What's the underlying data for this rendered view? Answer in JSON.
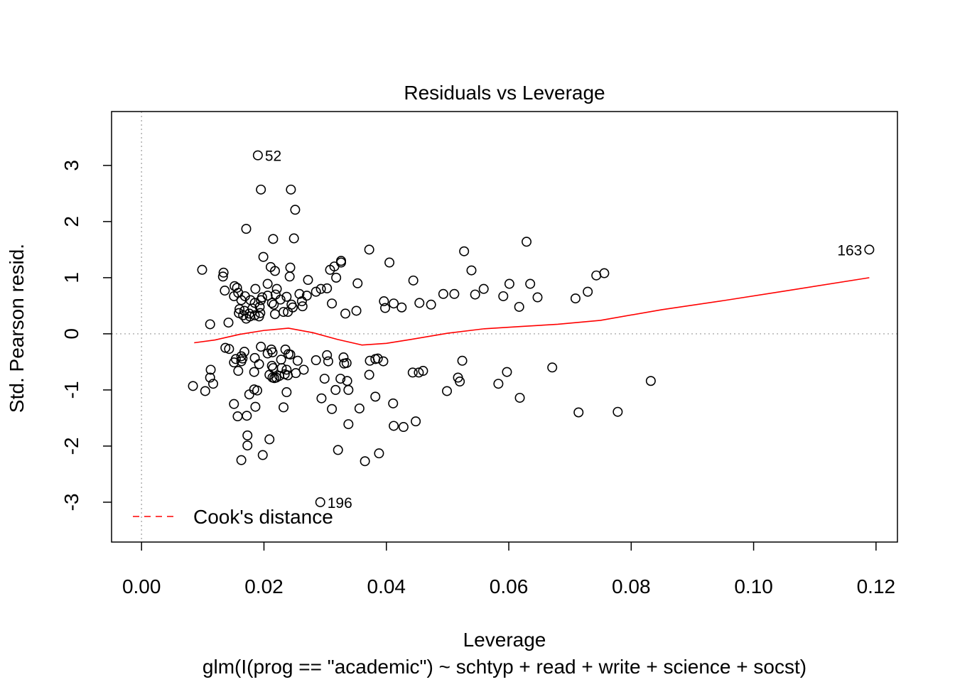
{
  "chart_data": {
    "type": "scatter",
    "title": "Residuals vs Leverage",
    "xlabel": "Leverage",
    "ylabel": "Std. Pearson resid.",
    "subtitle": "glm(I(prog == \"academic\") ~ schtyp + read + write + science + socst)",
    "xlim": [
      -0.0049,
      0.1235
    ],
    "ylim": [
      -3.71,
      3.96
    ],
    "xticks": [
      "0.00",
      "0.02",
      "0.04",
      "0.06",
      "0.08",
      "0.10",
      "0.12"
    ],
    "yticks": [
      "-3",
      "-2",
      "-1",
      "0",
      "1",
      "2",
      "3"
    ],
    "grid": false,
    "reference_lines": {
      "x": 0,
      "y": 0,
      "color": "#b4b4b4",
      "style": "dotted"
    },
    "point_labels": [
      {
        "text": "52",
        "x": 0.019,
        "y": 3.18,
        "side": "right"
      },
      {
        "text": "163",
        "x": 0.1189,
        "y": 1.5,
        "side": "left"
      },
      {
        "text": "196",
        "x": 0.0292,
        "y": -3.0,
        "side": "right"
      }
    ],
    "smooth_line": {
      "color": "#ff0000",
      "x": [
        0.0086,
        0.012,
        0.016,
        0.02,
        0.024,
        0.028,
        0.032,
        0.036,
        0.04,
        0.044,
        0.05,
        0.056,
        0.062,
        0.068,
        0.075,
        0.085,
        0.095,
        0.105,
        0.1189
      ],
      "y": [
        -0.16,
        -0.11,
        -0.01,
        0.06,
        0.1,
        0.02,
        -0.1,
        -0.2,
        -0.17,
        -0.1,
        0.01,
        0.09,
        0.13,
        0.17,
        0.24,
        0.43,
        0.59,
        0.76,
        1.0
      ]
    },
    "legend": {
      "position": "bottom-left",
      "label": "Cook's distance",
      "color": "#ff0000",
      "style": "dashed"
    },
    "points": [
      [
        0.019,
        3.18
      ],
      [
        0.0195,
        2.57
      ],
      [
        0.0244,
        2.57
      ],
      [
        0.0251,
        2.21
      ],
      [
        0.0171,
        1.87
      ],
      [
        0.0215,
        1.69
      ],
      [
        0.0249,
        1.7
      ],
      [
        0.0629,
        1.64
      ],
      [
        0.0372,
        1.5
      ],
      [
        0.0527,
        1.47
      ],
      [
        0.0326,
        1.3
      ],
      [
        0.0326,
        1.27
      ],
      [
        0.0199,
        1.37
      ],
      [
        0.0405,
        1.27
      ],
      [
        0.1189,
        1.5
      ],
      [
        0.0099,
        1.14
      ],
      [
        0.0211,
        1.19
      ],
      [
        0.0243,
        1.18
      ],
      [
        0.0308,
        1.14
      ],
      [
        0.0315,
        1.2
      ],
      [
        0.0539,
        1.13
      ],
      [
        0.0218,
        1.12
      ],
      [
        0.0134,
        1.09
      ],
      [
        0.0133,
        1.02
      ],
      [
        0.0242,
        1.02
      ],
      [
        0.0318,
        1.0
      ],
      [
        0.0444,
        0.95
      ],
      [
        0.0272,
        0.96
      ],
      [
        0.0756,
        1.08
      ],
      [
        0.0743,
        1.04
      ],
      [
        0.0206,
        0.89
      ],
      [
        0.0353,
        0.9
      ],
      [
        0.0601,
        0.89
      ],
      [
        0.0635,
        0.89
      ],
      [
        0.0152,
        0.85
      ],
      [
        0.0156,
        0.82
      ],
      [
        0.0136,
        0.77
      ],
      [
        0.0186,
        0.8
      ],
      [
        0.0221,
        0.8
      ],
      [
        0.0293,
        0.8
      ],
      [
        0.0303,
        0.81
      ],
      [
        0.0559,
        0.8
      ],
      [
        0.0158,
        0.73
      ],
      [
        0.0169,
        0.67
      ],
      [
        0.0178,
        0.6
      ],
      [
        0.0197,
        0.65
      ],
      [
        0.0206,
        0.68
      ],
      [
        0.0219,
        0.7
      ],
      [
        0.0237,
        0.66
      ],
      [
        0.0258,
        0.71
      ],
      [
        0.027,
        0.68
      ],
      [
        0.0285,
        0.75
      ],
      [
        0.0493,
        0.71
      ],
      [
        0.0511,
        0.71
      ],
      [
        0.0545,
        0.7
      ],
      [
        0.0591,
        0.67
      ],
      [
        0.0647,
        0.65
      ],
      [
        0.0729,
        0.75
      ],
      [
        0.0709,
        0.63
      ],
      [
        0.0151,
        0.67
      ],
      [
        0.0163,
        0.6
      ],
      [
        0.0185,
        0.55
      ],
      [
        0.0195,
        0.6
      ],
      [
        0.0213,
        0.55
      ],
      [
        0.0227,
        0.61
      ],
      [
        0.0245,
        0.52
      ],
      [
        0.0262,
        0.58
      ],
      [
        0.0311,
        0.54
      ],
      [
        0.0396,
        0.58
      ],
      [
        0.0412,
        0.54
      ],
      [
        0.0454,
        0.55
      ],
      [
        0.0425,
        0.47
      ],
      [
        0.0473,
        0.52
      ],
      [
        0.0617,
        0.48
      ],
      [
        0.016,
        0.44
      ],
      [
        0.0168,
        0.41
      ],
      [
        0.0181,
        0.45
      ],
      [
        0.0193,
        0.48
      ],
      [
        0.0216,
        0.52
      ],
      [
        0.0247,
        0.47
      ],
      [
        0.0263,
        0.49
      ],
      [
        0.0398,
        0.46
      ],
      [
        0.0159,
        0.37
      ],
      [
        0.0166,
        0.33
      ],
      [
        0.0176,
        0.36
      ],
      [
        0.0185,
        0.33
      ],
      [
        0.0194,
        0.37
      ],
      [
        0.0218,
        0.35
      ],
      [
        0.0232,
        0.39
      ],
      [
        0.0239,
        0.39
      ],
      [
        0.0333,
        0.36
      ],
      [
        0.0351,
        0.41
      ],
      [
        0.0171,
        0.27
      ],
      [
        0.0177,
        0.31
      ],
      [
        0.0192,
        0.31
      ],
      [
        0.0142,
        0.2
      ],
      [
        0.0112,
        0.17
      ],
      [
        0.0137,
        -0.25
      ],
      [
        0.0143,
        -0.27
      ],
      [
        0.0163,
        -0.4
      ],
      [
        0.0165,
        -0.44
      ],
      [
        0.0168,
        -0.32
      ],
      [
        0.0195,
        -0.23
      ],
      [
        0.0206,
        -0.35
      ],
      [
        0.0212,
        -0.28
      ],
      [
        0.0214,
        -0.33
      ],
      [
        0.0228,
        -0.46
      ],
      [
        0.0235,
        -0.28
      ],
      [
        0.024,
        -0.36
      ],
      [
        0.0243,
        -0.37
      ],
      [
        0.0255,
        -0.48
      ],
      [
        0.0285,
        -0.47
      ],
      [
        0.0303,
        -0.38
      ],
      [
        0.0305,
        -0.49
      ],
      [
        0.033,
        -0.42
      ],
      [
        0.0331,
        -0.53
      ],
      [
        0.0335,
        -0.52
      ],
      [
        0.0373,
        -0.48
      ],
      [
        0.0382,
        -0.45
      ],
      [
        0.0386,
        -0.44
      ],
      [
        0.0395,
        -0.49
      ],
      [
        0.0524,
        -0.48
      ],
      [
        0.0151,
        -0.51
      ],
      [
        0.0154,
        -0.45
      ],
      [
        0.0163,
        -0.49
      ],
      [
        0.0185,
        -0.43
      ],
      [
        0.0192,
        -0.54
      ],
      [
        0.0213,
        -0.57
      ],
      [
        0.0215,
        -0.61
      ],
      [
        0.0229,
        -0.61
      ],
      [
        0.0237,
        -0.64
      ],
      [
        0.0252,
        -0.7
      ],
      [
        0.0265,
        -0.64
      ],
      [
        0.0113,
        -0.64
      ],
      [
        0.0158,
        -0.66
      ],
      [
        0.0184,
        -0.68
      ],
      [
        0.0209,
        -0.73
      ],
      [
        0.0225,
        -0.75
      ],
      [
        0.0234,
        -0.72
      ],
      [
        0.0239,
        -0.74
      ],
      [
        0.0214,
        -0.78
      ],
      [
        0.0217,
        -0.79
      ],
      [
        0.022,
        -0.78
      ],
      [
        0.0112,
        -0.78
      ],
      [
        0.0117,
        -0.89
      ],
      [
        0.0084,
        -0.93
      ],
      [
        0.0104,
        -1.02
      ],
      [
        0.0299,
        -0.8
      ],
      [
        0.0325,
        -0.8
      ],
      [
        0.0336,
        -0.84
      ],
      [
        0.0372,
        -0.73
      ],
      [
        0.0443,
        -0.69
      ],
      [
        0.0453,
        -0.69
      ],
      [
        0.046,
        -0.66
      ],
      [
        0.0517,
        -0.78
      ],
      [
        0.052,
        -0.85
      ],
      [
        0.0583,
        -0.89
      ],
      [
        0.0597,
        -0.68
      ],
      [
        0.0671,
        -0.6
      ],
      [
        0.0832,
        -0.84
      ],
      [
        0.0184,
        -0.99
      ],
      [
        0.0189,
        -1.01
      ],
      [
        0.0176,
        -1.08
      ],
      [
        0.0237,
        -1.04
      ],
      [
        0.0317,
        -1.0
      ],
      [
        0.0294,
        -1.15
      ],
      [
        0.0338,
        -1.0
      ],
      [
        0.0499,
        -1.02
      ],
      [
        0.0382,
        -1.12
      ],
      [
        0.0618,
        -1.14
      ],
      [
        0.0151,
        -1.25
      ],
      [
        0.0186,
        -1.3
      ],
      [
        0.0232,
        -1.31
      ],
      [
        0.0311,
        -1.34
      ],
      [
        0.0356,
        -1.33
      ],
      [
        0.0411,
        -1.24
      ],
      [
        0.0714,
        -1.4
      ],
      [
        0.0778,
        -1.39
      ],
      [
        0.0157,
        -1.47
      ],
      [
        0.0172,
        -1.46
      ],
      [
        0.0338,
        -1.61
      ],
      [
        0.0412,
        -1.64
      ],
      [
        0.0428,
        -1.66
      ],
      [
        0.0448,
        -1.56
      ],
      [
        0.0173,
        -1.81
      ],
      [
        0.0173,
        -1.99
      ],
      [
        0.0209,
        -1.88
      ],
      [
        0.0198,
        -2.16
      ],
      [
        0.0163,
        -2.25
      ],
      [
        0.0321,
        -2.07
      ],
      [
        0.0365,
        -2.27
      ],
      [
        0.0388,
        -2.13
      ],
      [
        0.0292,
        -3.0
      ]
    ]
  }
}
